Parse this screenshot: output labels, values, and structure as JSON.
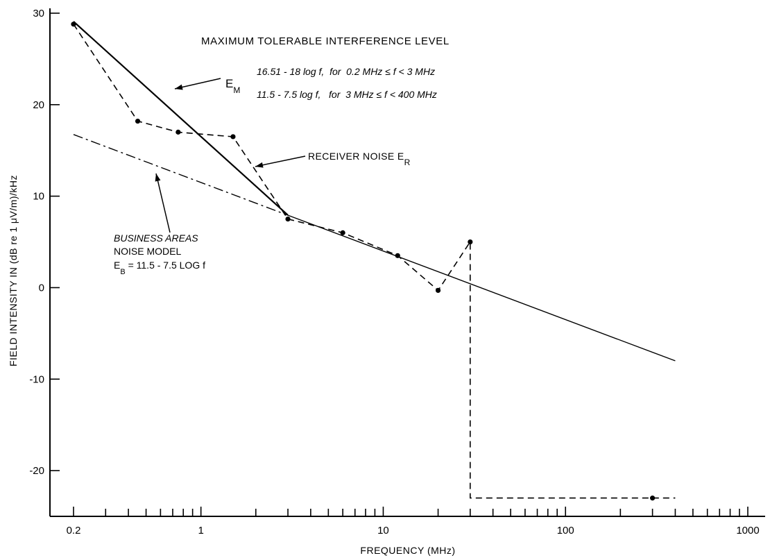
{
  "chart_data": {
    "type": "line",
    "title": "MAXIMUM TOLERABLE INTERFERENCE LEVEL",
    "xlabel": "FREQUENCY (MHz)",
    "ylabel": "FIELD INTENSITY IN (dB re 1 μV/m)/kHz",
    "x_scale": "log",
    "xlim": [
      0.2,
      1000
    ],
    "ylim": [
      -25,
      30
    ],
    "x_ticks": [
      0.2,
      1,
      10,
      100,
      1000
    ],
    "x_tick_labels": [
      "0.2",
      "1",
      "10",
      "100",
      "1000"
    ],
    "y_ticks": [
      -20,
      -10,
      0,
      10,
      20,
      30
    ],
    "y_tick_labels": [
      "-20",
      "-10",
      "0",
      "10",
      "20",
      "30"
    ],
    "grid": false,
    "formulas": [
      "16.51 - 18 log f,  for  0.2 MHz ≤ f < 3 MHz",
      "11.5 - 7.5 log f,   for  3 MHz ≤ f < 400 MHz"
    ],
    "series": [
      {
        "name": "E",
        "name_sub": "M",
        "style": "solid-thick",
        "x": [
          0.2,
          3
        ],
        "y": [
          29.09,
          7.93
        ]
      },
      {
        "name": "BUSINESS AREAS NOISE MODEL",
        "style": "dash-dot",
        "x": [
          0.2,
          3
        ],
        "y": [
          16.74,
          7.92
        ]
      },
      {
        "name": "",
        "style": "solid-thin",
        "x": [
          3,
          400
        ],
        "y": [
          7.92,
          -8.0
        ]
      },
      {
        "name": "RECEIVER NOISE E",
        "name_sub": "R",
        "style": "dashed",
        "markers": true,
        "x": [
          0.2,
          0.45,
          0.75,
          1.5,
          3,
          6,
          12,
          20,
          30,
          30,
          300
        ],
        "y": [
          28.8,
          18.2,
          17.0,
          16.5,
          7.5,
          6.0,
          3.5,
          -0.3,
          5.0,
          -23.0,
          -23.0
        ],
        "hidden_marker_indices": [
          9
        ],
        "tail_end_x": 400
      }
    ],
    "annotations": {
      "em_label": "E",
      "em_sub": "M",
      "receiver_label": "RECEIVER NOISE E",
      "receiver_sub": "R",
      "business_line1": "BUSINESS AREAS",
      "business_line2": "NOISE MODEL",
      "business_eq_e": "E",
      "business_eq_sub": "B",
      "business_eq_rest": " = 11.5 - 7.5 LOG f"
    }
  }
}
